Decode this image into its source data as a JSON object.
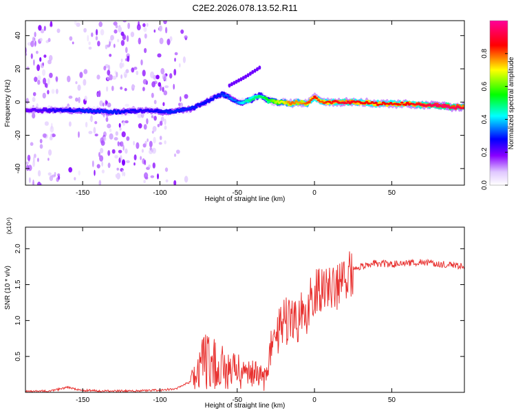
{
  "title": "C2E2.2026.078.13.52.R11",
  "chart_data": [
    {
      "type": "heatmap",
      "title": "C2E2.2026.078.13.52.R11",
      "xlabel": "Height of straight line (km)",
      "ylabel": "Frequency (Hz)",
      "xlim": [
        -187,
        97
      ],
      "ylim": [
        -50,
        49
      ],
      "x_ticks": [
        -150,
        -100,
        -50,
        0,
        50
      ],
      "y_ticks": [
        -40,
        -20,
        0,
        20,
        40
      ],
      "colorbar": {
        "label": "Normalized spectral amplitude",
        "range": [
          0,
          1
        ],
        "ticks": [
          "0.0",
          "0.2",
          "0.4",
          "0.6",
          "0.8"
        ],
        "colors": [
          "#ffffff",
          "#8800ff",
          "#0000ff",
          "#00ffff",
          "#00ff00",
          "#ffff00",
          "#ff0000",
          "#ff00aa"
        ]
      },
      "ridge": {
        "x": [
          -187,
          -170,
          -150,
          -130,
          -110,
          -95,
          -80,
          -70,
          -60,
          -55,
          -50,
          -45,
          -40,
          -35,
          -30,
          -25,
          -20,
          -15,
          -10,
          -5,
          0,
          5,
          10,
          20,
          30,
          40,
          50,
          60,
          70,
          80,
          90,
          97
        ],
        "y": [
          -5,
          -5,
          -5,
          -6,
          -5,
          -6,
          -4,
          0,
          5,
          3,
          0,
          0,
          2,
          4,
          1,
          0,
          0,
          -1,
          0,
          -1,
          3,
          0,
          0,
          0,
          0,
          -1,
          -1,
          -1,
          -2,
          -2,
          -3,
          -3
        ],
        "amplitude": [
          0.2,
          0.25,
          0.3,
          0.3,
          0.25,
          0.3,
          0.3,
          0.28,
          0.3,
          0.35,
          0.35,
          0.45,
          0.5,
          0.5,
          0.55,
          0.65,
          0.7,
          0.8,
          0.75,
          0.8,
          0.85,
          0.8,
          0.85,
          0.9,
          0.85,
          0.85,
          0.85,
          0.85,
          0.9,
          0.95,
          0.95,
          0.9
        ]
      },
      "side_band": {
        "x": [
          -55,
          -45,
          -40,
          -35
        ],
        "y": [
          10,
          15,
          18,
          21
        ]
      }
    },
    {
      "type": "line",
      "xlabel": "Height of straight line (km)",
      "ylabel": "SNR (10 * v/v)",
      "y_multiplier": "(x10⁴)",
      "xlim": [
        -187,
        97
      ],
      "ylim": [
        0,
        2.3
      ],
      "x_ticks": [
        -150,
        -100,
        -50,
        0,
        50
      ],
      "y_ticks": [
        0.5,
        1.0,
        1.5,
        2.0
      ],
      "series": [
        {
          "name": "SNR",
          "color": "#e8312f",
          "x": [
            -187,
            -170,
            -160,
            -150,
            -140,
            -120,
            -100,
            -90,
            -85,
            -80,
            -75,
            -72,
            -70,
            -65,
            -60,
            -55,
            -50,
            -45,
            -40,
            -35,
            -30,
            -28,
            -25,
            -22,
            -20,
            -15,
            -10,
            -5,
            0,
            5,
            10,
            15,
            20,
            25,
            30,
            40,
            50,
            60,
            70,
            80,
            90,
            97
          ],
          "y": [
            0.01,
            0.02,
            0.07,
            0.03,
            0.02,
            0.02,
            0.03,
            0.05,
            0.1,
            0.15,
            0.25,
            0.5,
            0.45,
            0.4,
            0.35,
            0.3,
            0.3,
            0.25,
            0.25,
            0.2,
            0.2,
            0.6,
            0.8,
            0.9,
            1.0,
            0.95,
            1.05,
            1.15,
            1.35,
            1.45,
            1.4,
            1.5,
            1.55,
            1.7,
            1.75,
            1.8,
            1.78,
            1.8,
            1.82,
            1.78,
            1.78,
            1.75
          ]
        }
      ]
    }
  ]
}
